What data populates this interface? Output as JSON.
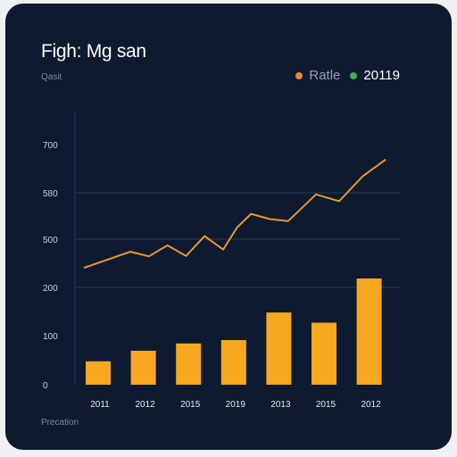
{
  "chart_data": {
    "type": "bar",
    "title": "Figh: Mg san",
    "subtitle": "Qasit",
    "footer": "Precation",
    "categories": [
      "2011",
      "2012",
      "2015",
      "2019",
      "2013",
      "2015",
      "2012"
    ],
    "y_ticks": [
      "0",
      "100",
      "200",
      "500",
      "580",
      "700"
    ],
    "legend": [
      {
        "label": "Ratle",
        "color": "#e9893a"
      },
      {
        "label": "20119",
        "color": "#3fae4c"
      }
    ],
    "series": [
      {
        "name": "Ratle",
        "kind": "bar",
        "color": "#f7a81e",
        "values": [
          55,
          80,
          97,
          105,
          170,
          146,
          250
        ]
      },
      {
        "name": "20119",
        "kind": "line",
        "color": "#e79b25",
        "x": [
          0.0,
          1.0,
          1.4,
          1.8,
          2.2,
          2.6,
          3.0,
          3.3,
          3.6,
          4.0,
          4.4,
          5.0,
          5.5,
          6.0,
          6.5
        ],
        "values": [
          275,
          313,
          302,
          328,
          303,
          350,
          318,
          370,
          402,
          390,
          385,
          448,
          432,
          490,
          530
        ]
      }
    ],
    "ylim": [
      0,
      620
    ],
    "grid": "horizontal"
  }
}
